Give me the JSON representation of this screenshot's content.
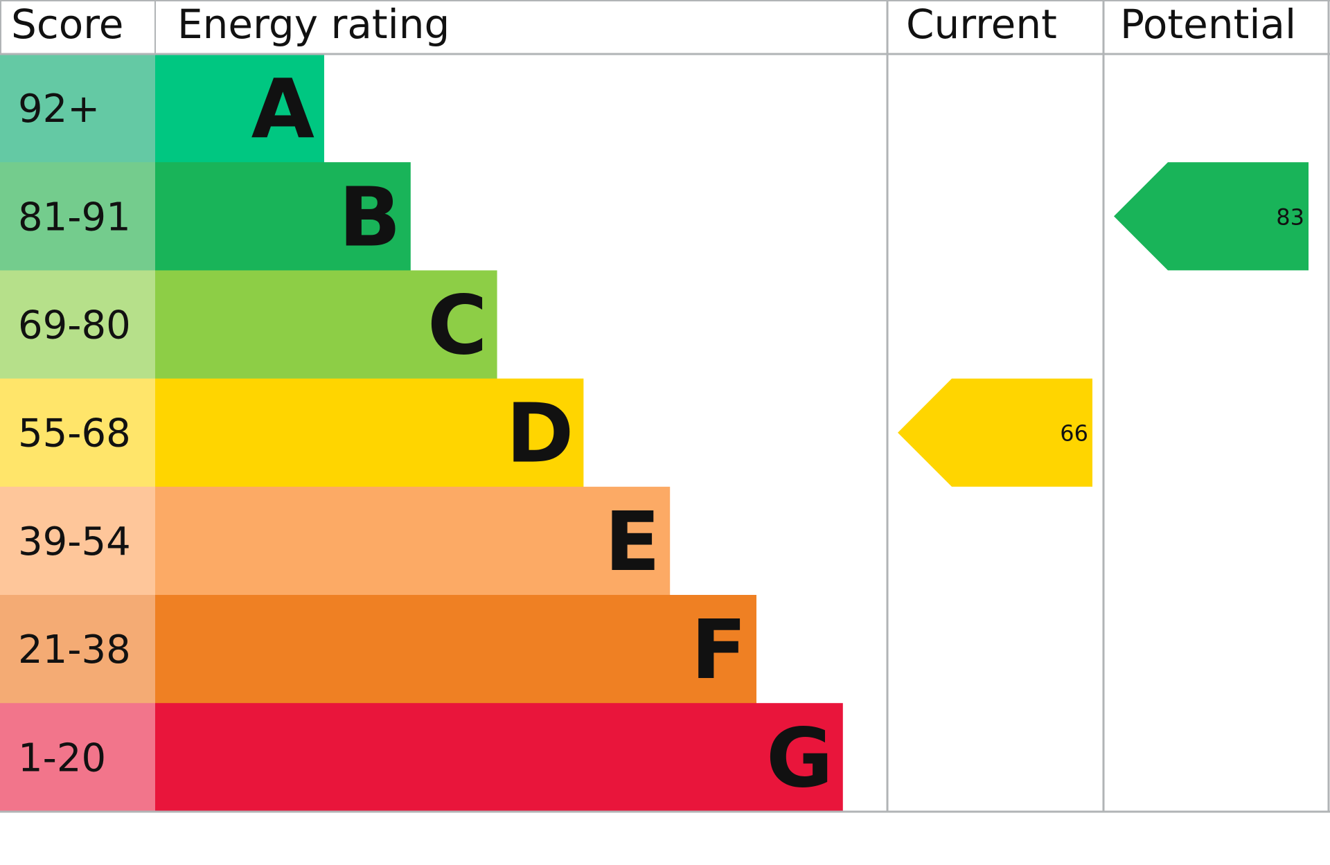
{
  "chart_data": {
    "type": "table",
    "headers": {
      "score": "Score",
      "rating": "Energy rating",
      "current": "Current",
      "potential": "Potential"
    },
    "bands": [
      {
        "score": "92+",
        "letter": "A",
        "color": "#00c781",
        "score_bg": "#64c9a4"
      },
      {
        "score": "81-91",
        "letter": "B",
        "color": "#19b459",
        "score_bg": "#74cc8d"
      },
      {
        "score": "69-80",
        "letter": "C",
        "color": "#8dce46",
        "score_bg": "#b6e08a"
      },
      {
        "score": "55-68",
        "letter": "D",
        "color": "#ffd500",
        "score_bg": "#ffe56a"
      },
      {
        "score": "39-54",
        "letter": "E",
        "color": "#fcaa65",
        "score_bg": "#fec69a"
      },
      {
        "score": "21-38",
        "letter": "F",
        "color": "#ef8023",
        "score_bg": "#f4ab74"
      },
      {
        "score": "1-20",
        "letter": "G",
        "color": "#e9153b",
        "score_bg": "#f2758b"
      }
    ],
    "current": {
      "value": 66,
      "band": "D",
      "color": "#ffd500"
    },
    "potential": {
      "value": 83,
      "band": "B",
      "color": "#19b459"
    }
  }
}
